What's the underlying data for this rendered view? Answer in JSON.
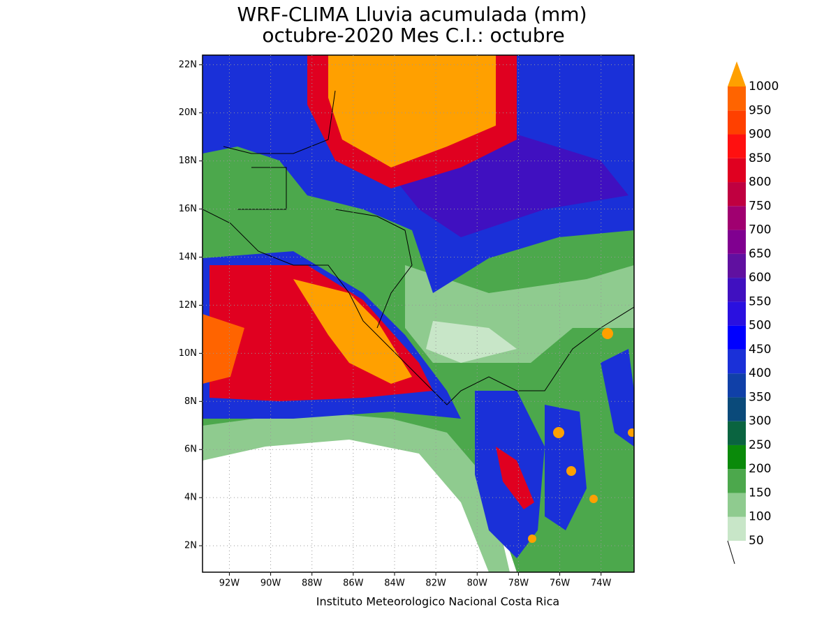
{
  "map": {
    "title": [
      "WRF-CLIMA Lluvia acumulada (mm)",
      "octubre-2020 Mes C.I.: octubre"
    ],
    "footer": "Instituto Meteorologico Nacional Costa Rica",
    "xlim": [
      -93.3,
      -72.4
    ],
    "ylim": [
      0.9,
      22.4
    ],
    "xticks": [
      {
        "value": -92,
        "label": "92W"
      },
      {
        "value": -90,
        "label": "90W"
      },
      {
        "value": -88,
        "label": "88W"
      },
      {
        "value": -86,
        "label": "86W"
      },
      {
        "value": -84,
        "label": "84W"
      },
      {
        "value": -82,
        "label": "82W"
      },
      {
        "value": -80,
        "label": "80W"
      },
      {
        "value": -78,
        "label": "78W"
      },
      {
        "value": -76,
        "label": "76W"
      },
      {
        "value": -74,
        "label": "74W"
      }
    ],
    "yticks": [
      {
        "value": 2,
        "label": "2N"
      },
      {
        "value": 4,
        "label": "4N"
      },
      {
        "value": 6,
        "label": "6N"
      },
      {
        "value": 8,
        "label": "8N"
      },
      {
        "value": 10,
        "label": "10N"
      },
      {
        "value": 12,
        "label": "12N"
      },
      {
        "value": 14,
        "label": "14N"
      },
      {
        "value": 16,
        "label": "16N"
      },
      {
        "value": 18,
        "label": "18N"
      },
      {
        "value": 20,
        "label": "20N"
      },
      {
        "value": 22,
        "label": "22N"
      }
    ],
    "grid": true,
    "colorbar": {
      "levels": [
        50,
        100,
        150,
        200,
        250,
        300,
        350,
        400,
        450,
        500,
        550,
        600,
        650,
        700,
        750,
        800,
        850,
        900,
        950,
        1000
      ],
      "colors": [
        "#ffffff",
        "#c8e6c8",
        "#8fcb8f",
        "#4ca84c",
        "#0a8a0a",
        "#0a6440",
        "#0a4a7a",
        "#1040a8",
        "#1a30d8",
        "#0000ff",
        "#2a10e0",
        "#4010c0",
        "#6010a0",
        "#800090",
        "#a00070",
        "#c00040",
        "#e00020",
        "#ff1010",
        "#ff4000",
        "#ff6400",
        "#ffa000"
      ]
    }
  }
}
